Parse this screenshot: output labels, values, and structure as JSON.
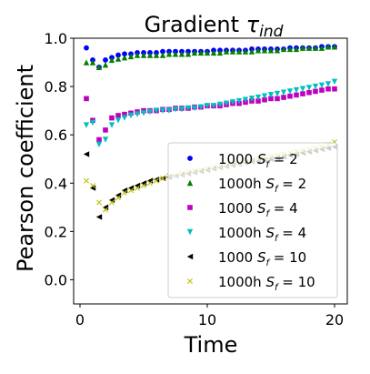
{
  "chart_data": {
    "type": "scatter",
    "title_main": "Gradient ",
    "title_symbol": "τ",
    "title_sub": "ind",
    "xlabel": "Time",
    "ylabel": "Pearson coefficient",
    "xlim": [
      -0.5,
      21
    ],
    "ylim": [
      -0.1,
      1.0
    ],
    "xticks": [
      0,
      10,
      20
    ],
    "yticks": [
      0.0,
      0.2,
      0.4,
      0.6,
      0.8,
      1.0
    ],
    "grid": false,
    "legend_position": "lower right",
    "series": [
      {
        "name_prefix": "1000 ",
        "name_var": "S",
        "name_sub": "f",
        "name_suffix": " = 2",
        "marker": "circle",
        "color": "#0000ff",
        "x": [
          0.5,
          1.0,
          1.5,
          2.0,
          2.5,
          3.0,
          3.5,
          4.0,
          4.5,
          5.0,
          5.5,
          6.0,
          6.5,
          7.0,
          7.5,
          8.0,
          8.5,
          9.0,
          9.5,
          10.0,
          10.5,
          11.0,
          11.5,
          12.0,
          12.5,
          13.0,
          13.5,
          14.0,
          14.5,
          15.0,
          15.5,
          16.0,
          16.5,
          17.0,
          17.5,
          18.0,
          18.5,
          19.0,
          19.5,
          20.0
        ],
        "y": [
          0.96,
          0.91,
          0.88,
          0.91,
          0.92,
          0.93,
          0.935,
          0.935,
          0.94,
          0.94,
          0.94,
          0.94,
          0.945,
          0.945,
          0.945,
          0.945,
          0.945,
          0.945,
          0.945,
          0.945,
          0.95,
          0.95,
          0.95,
          0.95,
          0.95,
          0.95,
          0.955,
          0.955,
          0.955,
          0.955,
          0.955,
          0.955,
          0.96,
          0.96,
          0.96,
          0.96,
          0.96,
          0.965,
          0.965,
          0.965
        ]
      },
      {
        "name_prefix": "1000h ",
        "name_var": "S",
        "name_sub": "f",
        "name_suffix": " = 2",
        "marker": "triangle-up",
        "color": "#008000",
        "x": [
          0.5,
          1.0,
          1.5,
          2.0,
          2.5,
          3.0,
          3.5,
          4.0,
          4.5,
          5.0,
          5.5,
          6.0,
          6.5,
          7.0,
          7.5,
          8.0,
          8.5,
          9.0,
          9.5,
          10.0,
          10.5,
          11.0,
          11.5,
          12.0,
          12.5,
          13.0,
          13.5,
          14.0,
          14.5,
          15.0,
          15.5,
          16.0,
          16.5,
          17.0,
          17.5,
          18.0,
          18.5,
          19.0,
          19.5,
          20.0
        ],
        "y": [
          0.9,
          0.9,
          0.88,
          0.89,
          0.91,
          0.915,
          0.92,
          0.925,
          0.93,
          0.93,
          0.93,
          0.93,
          0.93,
          0.935,
          0.935,
          0.935,
          0.935,
          0.94,
          0.94,
          0.94,
          0.94,
          0.94,
          0.945,
          0.945,
          0.945,
          0.945,
          0.945,
          0.95,
          0.95,
          0.95,
          0.95,
          0.955,
          0.955,
          0.955,
          0.96,
          0.96,
          0.96,
          0.96,
          0.965,
          0.965
        ]
      },
      {
        "name_prefix": "1000 ",
        "name_var": "S",
        "name_sub": "f",
        "name_suffix": " = 4",
        "marker": "square",
        "color": "#bf00bf",
        "x": [
          0.5,
          1.0,
          1.5,
          2.0,
          2.5,
          3.0,
          3.5,
          4.0,
          4.5,
          5.0,
          5.5,
          6.0,
          6.5,
          7.0,
          7.5,
          8.0,
          8.5,
          9.0,
          9.5,
          10.0,
          10.5,
          11.0,
          11.5,
          12.0,
          12.5,
          13.0,
          13.5,
          14.0,
          14.5,
          15.0,
          15.5,
          16.0,
          16.5,
          17.0,
          17.5,
          18.0,
          18.5,
          19.0,
          19.5,
          20.0
        ],
        "y": [
          0.75,
          0.66,
          0.58,
          0.62,
          0.67,
          0.68,
          0.685,
          0.69,
          0.695,
          0.7,
          0.7,
          0.7,
          0.705,
          0.705,
          0.71,
          0.71,
          0.71,
          0.715,
          0.715,
          0.72,
          0.72,
          0.72,
          0.725,
          0.73,
          0.73,
          0.735,
          0.74,
          0.74,
          0.745,
          0.75,
          0.75,
          0.755,
          0.76,
          0.765,
          0.77,
          0.775,
          0.78,
          0.785,
          0.79,
          0.79
        ]
      },
      {
        "name_prefix": "1000h ",
        "name_var": "S",
        "name_sub": "f",
        "name_suffix": " = 4",
        "marker": "triangle-down",
        "color": "#00bfbf",
        "x": [
          0.5,
          1.0,
          1.5,
          2.0,
          2.5,
          3.0,
          3.5,
          4.0,
          4.5,
          5.0,
          5.5,
          6.0,
          6.5,
          7.0,
          7.5,
          8.0,
          8.5,
          9.0,
          9.5,
          10.0,
          10.5,
          11.0,
          11.5,
          12.0,
          12.5,
          13.0,
          13.5,
          14.0,
          14.5,
          15.0,
          15.5,
          16.0,
          16.5,
          17.0,
          17.5,
          18.0,
          18.5,
          19.0,
          19.5,
          20.0
        ],
        "y": [
          0.64,
          0.65,
          0.56,
          0.58,
          0.64,
          0.66,
          0.67,
          0.68,
          0.685,
          0.69,
          0.695,
          0.7,
          0.7,
          0.7,
          0.705,
          0.705,
          0.71,
          0.71,
          0.715,
          0.72,
          0.72,
          0.725,
          0.73,
          0.735,
          0.74,
          0.745,
          0.75,
          0.755,
          0.76,
          0.765,
          0.77,
          0.775,
          0.78,
          0.785,
          0.79,
          0.795,
          0.8,
          0.805,
          0.81,
          0.82
        ]
      },
      {
        "name_prefix": "1000 ",
        "name_var": "S",
        "name_sub": "f",
        "name_suffix": " = 10",
        "marker": "triangle-left",
        "color": "#000000",
        "x": [
          0.5,
          1.0,
          1.5,
          2.0,
          2.5,
          3.0,
          3.5,
          4.0,
          4.5,
          5.0,
          5.5,
          6.0,
          6.5,
          7.0,
          7.5,
          8.0,
          8.5,
          9.0,
          9.5,
          10.0,
          10.5,
          11.0,
          11.5,
          12.0,
          12.5,
          13.0,
          13.5,
          14.0,
          14.5,
          15.0,
          15.5,
          16.0,
          16.5,
          17.0,
          17.5,
          18.0,
          18.5,
          19.0,
          19.5,
          20.0
        ],
        "y": [
          0.52,
          0.38,
          0.26,
          0.3,
          0.33,
          0.35,
          0.37,
          0.38,
          0.39,
          0.4,
          0.41,
          0.415,
          0.42,
          0.425,
          0.43,
          0.435,
          0.44,
          0.445,
          0.45,
          0.455,
          0.46,
          0.465,
          0.47,
          0.475,
          0.48,
          0.485,
          0.49,
          0.49,
          0.495,
          0.5,
          0.505,
          0.51,
          0.515,
          0.52,
          0.525,
          0.53,
          0.535,
          0.54,
          0.545,
          0.55
        ]
      },
      {
        "name_prefix": "1000h ",
        "name_var": "S",
        "name_sub": "f",
        "name_suffix": " = 10",
        "marker": "x",
        "color": "#bfbf00",
        "x": [
          0.5,
          1.0,
          1.5,
          2.0,
          2.5,
          3.0,
          3.5,
          4.0,
          4.5,
          5.0,
          5.5,
          6.0,
          6.5,
          7.0,
          7.5,
          8.0,
          8.5,
          9.0,
          9.5,
          10.0,
          10.5,
          11.0,
          11.5,
          12.0,
          12.5,
          13.0,
          13.5,
          14.0,
          14.5,
          15.0,
          15.5,
          16.0,
          16.5,
          17.0,
          17.5,
          18.0,
          18.5,
          19.0,
          19.5,
          20.0
        ],
        "y": [
          0.41,
          0.39,
          0.32,
          0.29,
          0.32,
          0.34,
          0.36,
          0.37,
          0.38,
          0.39,
          0.4,
          0.41,
          0.42,
          0.43,
          0.43,
          0.44,
          0.445,
          0.45,
          0.455,
          0.46,
          0.465,
          0.47,
          0.475,
          0.48,
          0.485,
          0.49,
          0.495,
          0.5,
          0.505,
          0.51,
          0.515,
          0.52,
          0.525,
          0.53,
          0.535,
          0.54,
          0.545,
          0.55,
          0.56,
          0.57
        ]
      }
    ]
  }
}
